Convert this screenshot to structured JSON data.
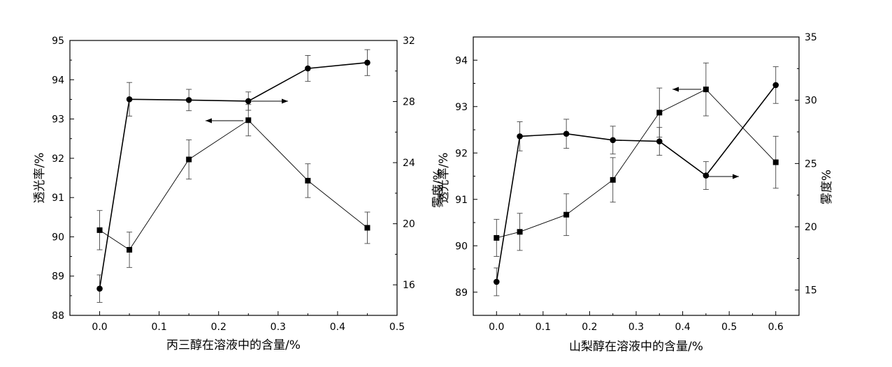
{
  "chart_data": [
    {
      "type": "line",
      "xlabel": "丙三醇在溶液中的含量/%",
      "ylabel_left": "透光率/%",
      "ylabel_right": "雾度/%",
      "xlim": [
        -0.05,
        0.5
      ],
      "xticks": [
        0.0,
        0.1,
        0.2,
        0.3,
        0.4,
        0.5
      ],
      "xtick_labels": [
        "0.0",
        "0.1",
        "0.2",
        "0.3",
        "0.4",
        "0.5"
      ],
      "ylim_left": [
        88,
        95
      ],
      "yticks_left": [
        88,
        89,
        90,
        91,
        92,
        93,
        94,
        95
      ],
      "ylim_right": [
        14,
        32
      ],
      "yticks_right": [
        16,
        20,
        24,
        28,
        32
      ],
      "series": [
        {
          "axis": "left",
          "marker": "square",
          "x": [
            0.0,
            0.05,
            0.15,
            0.25,
            0.35,
            0.45
          ],
          "y": [
            90.17,
            89.67,
            91.97,
            92.97,
            91.43,
            90.23
          ],
          "err": [
            0.5,
            0.45,
            0.5,
            0.4,
            0.43,
            0.4
          ]
        },
        {
          "axis": "right",
          "marker": "circle",
          "x": [
            0.0,
            0.05,
            0.15,
            0.25,
            0.35,
            0.45
          ],
          "y": [
            15.75,
            28.15,
            28.1,
            28.03,
            30.17,
            30.55
          ],
          "err": [
            0.9,
            1.1,
            0.7,
            0.6,
            0.85,
            0.85
          ]
        }
      ]
    },
    {
      "type": "line",
      "xlabel": "山梨醇在溶液中的含量/%",
      "ylabel_left": "透光率/%",
      "ylabel_right": "雾度%",
      "xlim": [
        -0.05,
        0.65
      ],
      "xticks": [
        0.0,
        0.1,
        0.2,
        0.3,
        0.4,
        0.5,
        0.6
      ],
      "xtick_labels": [
        "0.0",
        "0.1",
        "0.2",
        "0.3",
        "0.4",
        "0.5",
        "0.6"
      ],
      "ylim_left": [
        88.5,
        94.5
      ],
      "yticks_left": [
        89,
        90,
        91,
        92,
        93,
        94
      ],
      "ylim_right": [
        13,
        35
      ],
      "yticks_right": [
        15,
        20,
        25,
        30,
        35
      ],
      "series": [
        {
          "axis": "left",
          "marker": "square",
          "x": [
            0.0,
            0.05,
            0.15,
            0.25,
            0.35,
            0.45,
            0.6
          ],
          "y": [
            90.17,
            90.3,
            90.67,
            91.42,
            92.87,
            93.37,
            91.8
          ],
          "err": [
            0.4,
            0.4,
            0.45,
            0.48,
            0.53,
            0.57,
            0.56
          ]
        },
        {
          "axis": "right",
          "marker": "circle",
          "x": [
            0.0,
            0.05,
            0.15,
            0.25,
            0.35,
            0.45,
            0.6
          ],
          "y": [
            15.65,
            27.15,
            27.35,
            26.85,
            26.75,
            24.05,
            31.2
          ],
          "err": [
            1.1,
            1.15,
            1.15,
            1.1,
            1.1,
            1.1,
            1.45
          ]
        }
      ]
    }
  ]
}
